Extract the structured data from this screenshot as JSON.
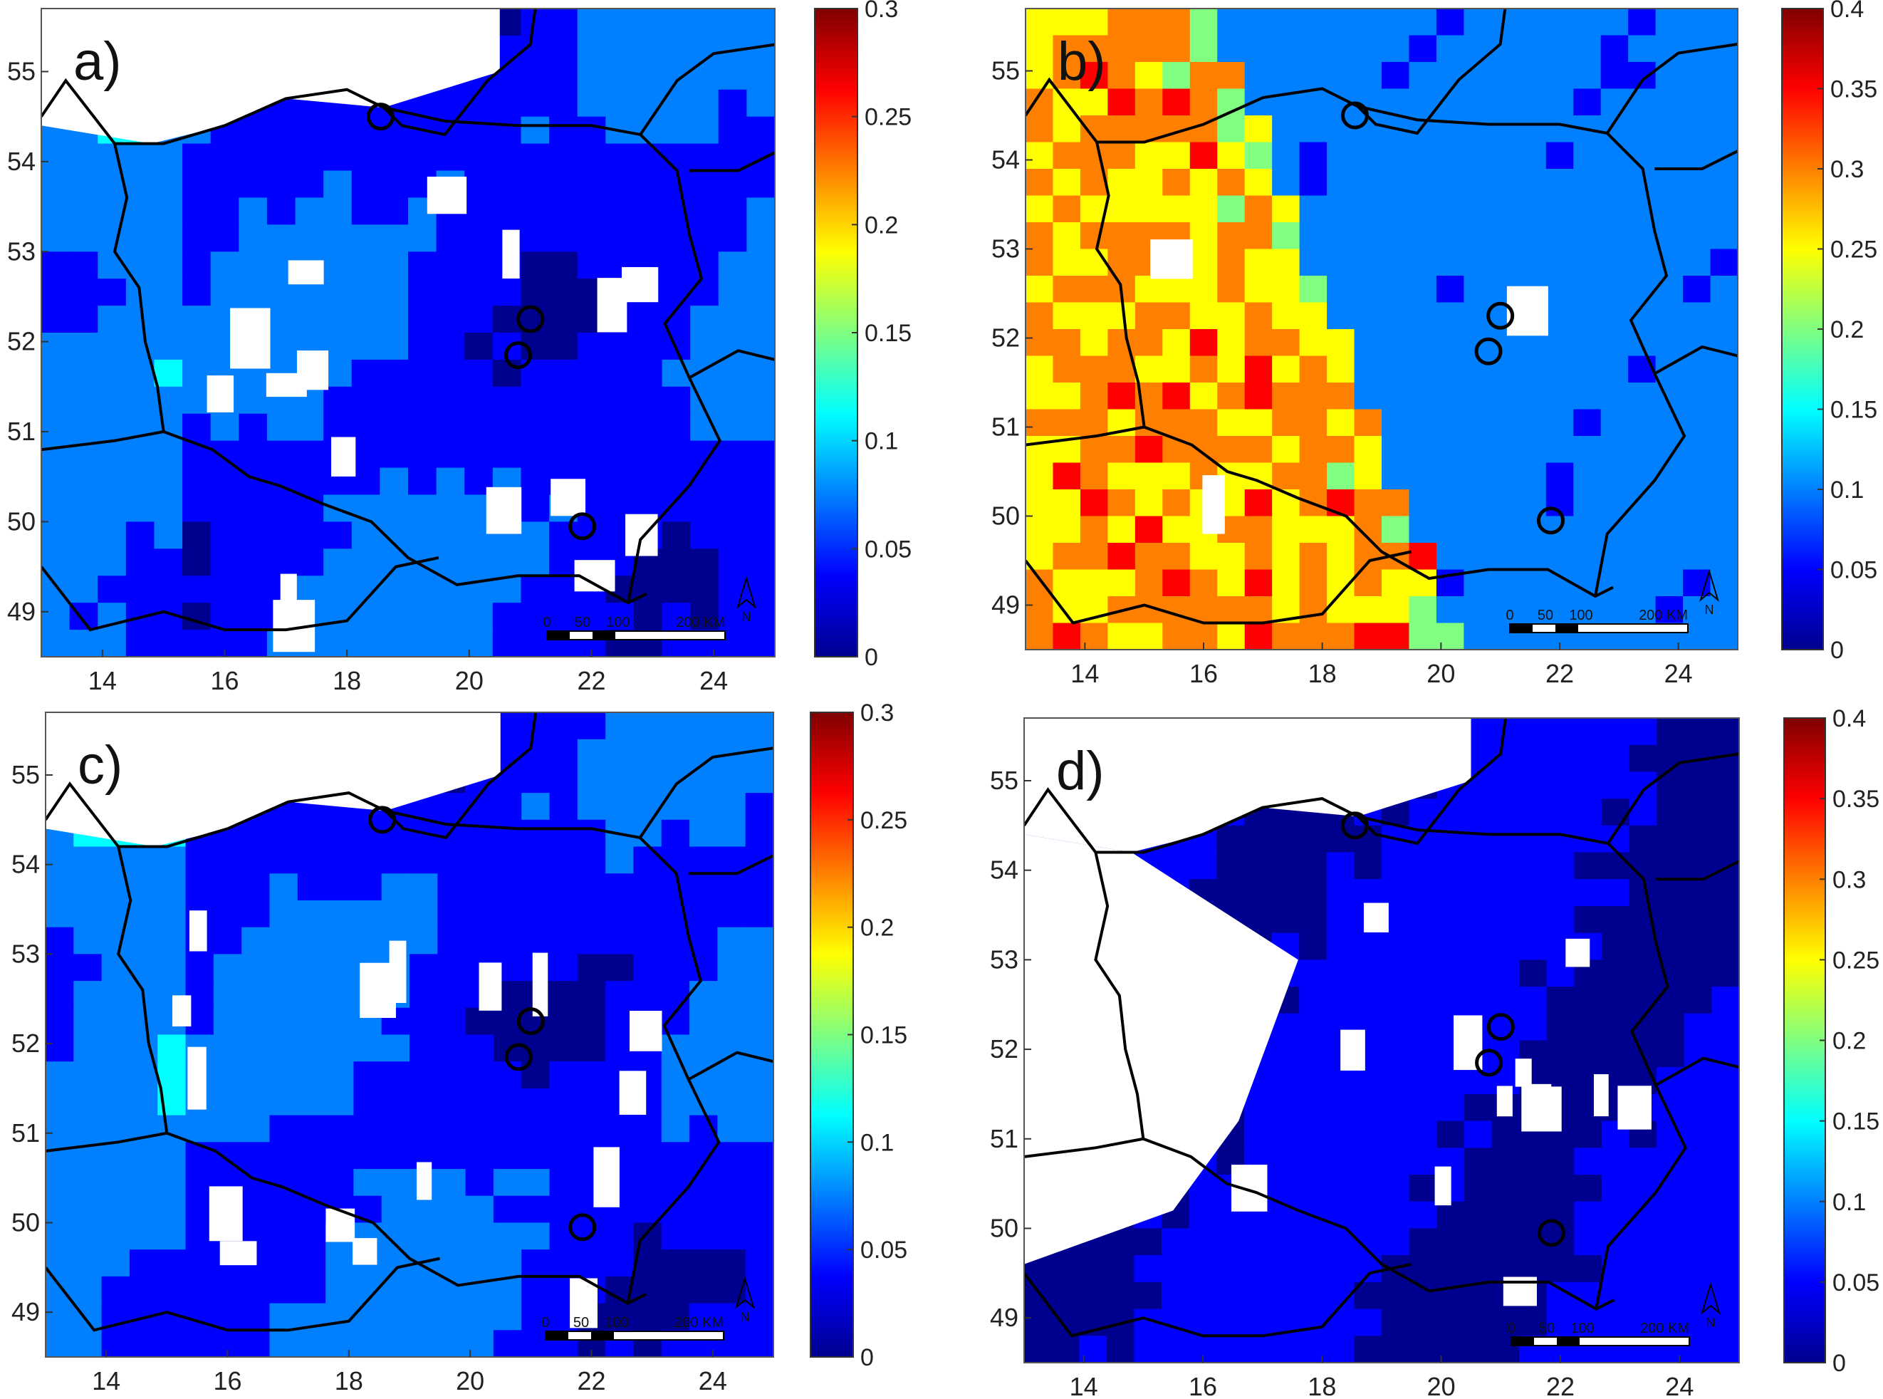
{
  "figure": {
    "panels": [
      {
        "id": "a",
        "label": "a)",
        "variant": "low",
        "colorbar": {
          "ticks": [
            "0.3",
            "0.25",
            "0.2",
            "0.15",
            "0.1",
            "0.05",
            "0"
          ],
          "min": 0,
          "max": 0.3
        },
        "lon_ticks": [
          "14",
          "16",
          "18",
          "20",
          "22",
          "24"
        ],
        "lat_ticks": [
          "55",
          "54",
          "53",
          "52",
          "51",
          "50",
          "49"
        ],
        "scale_bar": {
          "labels": [
            "0",
            "50",
            "100",
            "200 KM"
          ]
        },
        "north_label": "N"
      },
      {
        "id": "b",
        "label": "b)",
        "variant": "west-high",
        "colorbar": {
          "ticks": [
            "0.4",
            "0.35",
            "0.3",
            "0.25",
            "0.2",
            "0.15",
            "0.1",
            "0.05",
            "0"
          ],
          "min": 0,
          "max": 0.4
        },
        "lon_ticks": [
          "14",
          "16",
          "18",
          "20",
          "22",
          "24"
        ],
        "lat_ticks": [
          "55",
          "54",
          "53",
          "52",
          "51",
          "50",
          "49"
        ],
        "scale_bar": {
          "labels": [
            "0",
            "50",
            "100",
            "200 KM"
          ]
        },
        "north_label": "N"
      },
      {
        "id": "c",
        "label": "c)",
        "variant": "low",
        "colorbar": {
          "ticks": [
            "0.3",
            "0.25",
            "0.2",
            "0.15",
            "0.1",
            "0.05",
            "0"
          ],
          "min": 0,
          "max": 0.3
        },
        "lon_ticks": [
          "14",
          "16",
          "18",
          "20",
          "22",
          "24"
        ],
        "lat_ticks": [
          "55",
          "54",
          "53",
          "52",
          "51",
          "50",
          "49"
        ],
        "scale_bar": {
          "labels": [
            "0",
            "50",
            "100",
            "200 KM"
          ]
        },
        "north_label": "N"
      },
      {
        "id": "d",
        "label": "d)",
        "variant": "very-low",
        "colorbar": {
          "ticks": [
            "0.4",
            "0.35",
            "0.3",
            "0.25",
            "0.2",
            "0.15",
            "0.1",
            "0.05",
            "0"
          ],
          "min": 0,
          "max": 0.4
        },
        "lon_ticks": [
          "14",
          "16",
          "18",
          "20",
          "22",
          "24"
        ],
        "lat_ticks": [
          "55",
          "54",
          "53",
          "52",
          "51",
          "50",
          "49"
        ],
        "scale_bar": {
          "labels": [
            "0",
            "50",
            "100",
            "200 KM"
          ]
        },
        "north_label": "N"
      }
    ],
    "colors": {
      "jet": [
        "#00008f",
        "#0000ff",
        "#0080ff",
        "#00ffff",
        "#80ff80",
        "#ffff00",
        "#ff8000",
        "#ff0000",
        "#800000"
      ],
      "border": "#000000"
    }
  }
}
